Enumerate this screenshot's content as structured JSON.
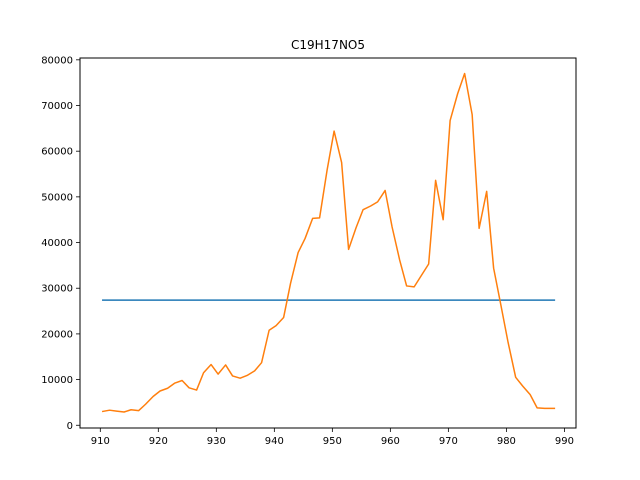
{
  "chart_data": {
    "type": "line",
    "title": "C19H17NO5",
    "xlabel": "",
    "ylabel": "",
    "xlim": [
      906.5,
      992
    ],
    "ylim": [
      -600,
      80400
    ],
    "xticks": [
      910,
      920,
      930,
      940,
      950,
      960,
      970,
      980,
      990
    ],
    "yticks": [
      0,
      10000,
      20000,
      30000,
      40000,
      50000,
      60000,
      70000,
      80000
    ],
    "grid": false,
    "series": [
      {
        "color": "#1f77b4",
        "x": [
          910.3,
          988.4
        ],
        "y": [
          27400,
          27400
        ]
      },
      {
        "color": "#ff7f0e",
        "x": [
          910.3,
          911.6,
          912.8,
          914.1,
          915.3,
          916.6,
          917.8,
          919.1,
          920.3,
          921.6,
          922.8,
          924.1,
          925.3,
          926.6,
          927.8,
          929.1,
          930.3,
          931.6,
          932.8,
          934.1,
          935.3,
          936.6,
          937.8,
          939.1,
          940.3,
          941.6,
          942.8,
          944.1,
          945.3,
          946.6,
          947.8,
          949.1,
          950.3,
          951.6,
          952.8,
          954.1,
          955.3,
          956.6,
          957.8,
          959.1,
          960.3,
          961.6,
          962.8,
          964.1,
          965.3,
          966.6,
          967.8,
          969.1,
          970.3,
          971.6,
          972.8,
          974.1,
          975.3,
          976.6,
          977.8,
          979.1,
          980.3,
          981.6,
          982.8,
          984.1,
          985.3,
          986.6,
          987.8,
          988.4
        ],
        "y": [
          3000,
          3300,
          3100,
          2900,
          3400,
          3200,
          4600,
          6300,
          7500,
          8100,
          9200,
          9800,
          8200,
          7700,
          11500,
          13300,
          11200,
          13200,
          10800,
          10300,
          10900,
          11900,
          13700,
          20800,
          21800,
          23600,
          31100,
          37800,
          40900,
          45300,
          45400,
          55900,
          64400,
          57500,
          38500,
          43300,
          47200,
          48000,
          48900,
          51400,
          43400,
          36200,
          30500,
          30300,
          32700,
          35300,
          53600,
          45000,
          66700,
          72600,
          77000,
          68000,
          43100,
          51200,
          34400,
          26000,
          18100,
          10500,
          8600,
          6700,
          3800,
          3700,
          3700,
          3700
        ]
      }
    ]
  }
}
